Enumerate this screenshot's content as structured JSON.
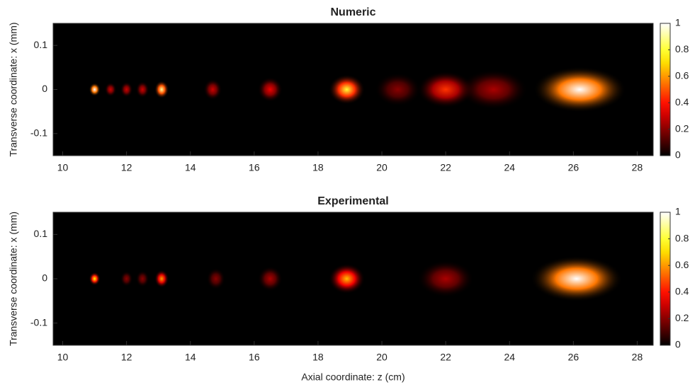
{
  "chart_data": [
    {
      "type": "heatmap",
      "title": "Numeric",
      "ylabel": "Transverse coordinate: x (mm)",
      "xlim": [
        9.7,
        28.5
      ],
      "xticks": [
        10,
        12,
        14,
        16,
        18,
        20,
        22,
        24,
        26,
        28
      ],
      "ylim": [
        -0.15,
        0.15
      ],
      "yticks": [
        -0.1,
        0,
        0.1
      ],
      "clim": [
        0,
        1
      ],
      "cticks": [
        0,
        0.2,
        0.4,
        0.6,
        0.8,
        1
      ],
      "z": [
        11,
        11.5,
        12,
        12.5,
        13.1,
        14.7,
        16.5,
        18.9,
        20.5,
        22,
        23.5,
        26.2
      ],
      "values": [
        1,
        0.3,
        0.3,
        0.3,
        0.9,
        0.3,
        0.35,
        0.8,
        0.2,
        0.45,
        0.25,
        1
      ]
    },
    {
      "type": "heatmap",
      "title": "Experimental",
      "ylabel": "Transverse coordinate: x (mm)",
      "xlabel": "Axial coordinate: z (cm)",
      "xlim": [
        9.7,
        28.5
      ],
      "xticks": [
        10,
        12,
        14,
        16,
        18,
        20,
        22,
        24,
        26,
        28
      ],
      "ylim": [
        -0.15,
        0.15
      ],
      "yticks": [
        -0.1,
        0,
        0.1
      ],
      "clim": [
        0,
        1
      ],
      "cticks": [
        0,
        0.2,
        0.4,
        0.6,
        0.8,
        1
      ],
      "z": [
        11,
        12,
        12.5,
        13.1,
        14.8,
        16.5,
        18.9,
        22,
        26.1
      ],
      "values": [
        0.75,
        0.2,
        0.2,
        0.6,
        0.2,
        0.25,
        0.65,
        0.25,
        1
      ]
    }
  ]
}
